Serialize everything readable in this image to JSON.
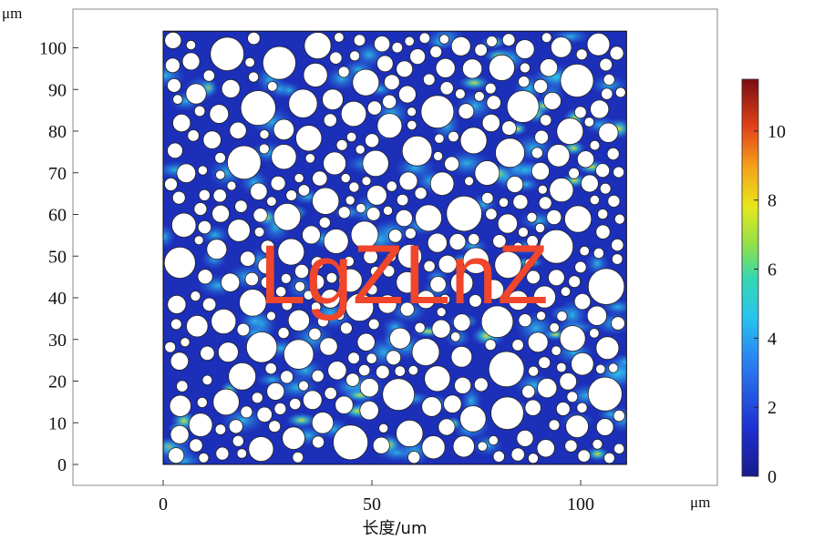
{
  "chart_data": {
    "type": "heatmap",
    "title": "",
    "xlabel": "长度/um",
    "x_unit": "μm",
    "y_unit": "μm",
    "xlim": [
      -22,
      131
    ],
    "ylim": [
      -5,
      109
    ],
    "x_ticks": [
      "0",
      "50",
      "100"
    ],
    "x_tick_values": [
      0,
      50,
      100
    ],
    "y_ticks": [
      "0",
      "10",
      "20",
      "30",
      "40",
      "50",
      "60",
      "70",
      "80",
      "90",
      "100"
    ],
    "y_tick_values": [
      0,
      10,
      20,
      30,
      40,
      50,
      60,
      70,
      80,
      90,
      100
    ],
    "domain_x": [
      0,
      111
    ],
    "domain_y": [
      0,
      104
    ],
    "colorbar": {
      "min": 0,
      "max": 11.5,
      "ticks": [
        "0",
        "2",
        "4",
        "6",
        "8",
        "10"
      ],
      "tick_values": [
        0,
        2,
        4,
        6,
        8,
        10
      ],
      "colormap": "rainbow (jet)"
    },
    "grid": false,
    "description_free_note": ""
  },
  "watermark": {
    "text": "LgZLnZ",
    "color": "#f0462b"
  },
  "colors": {
    "field_base": "#1c2fb8",
    "field_dark": "#14238e",
    "particle_fill": "#ffffff",
    "particle_stroke": "#222222"
  }
}
